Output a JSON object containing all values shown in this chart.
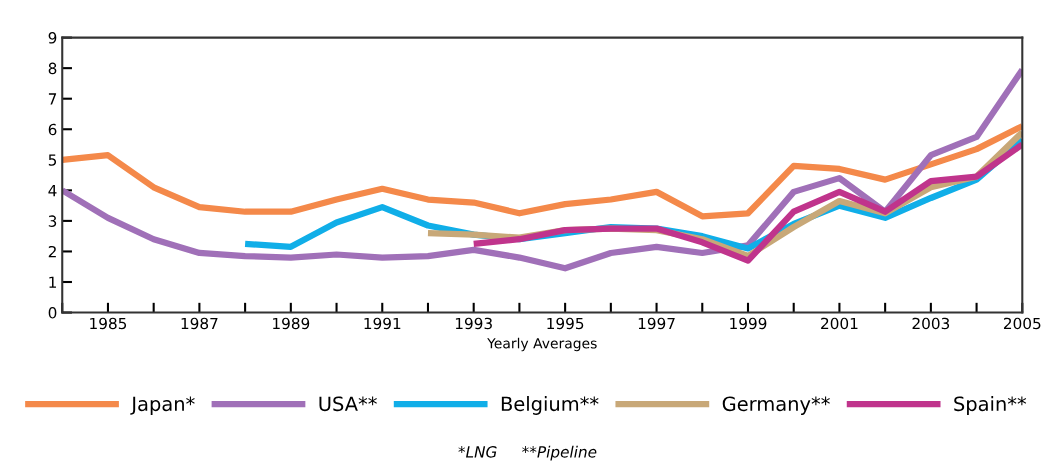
{
  "chart_data": {
    "type": "line",
    "xlabel": "Yearly Averages",
    "xlim": [
      1984,
      2005
    ],
    "ylim": [
      0,
      9
    ],
    "xticks": [
      {
        "value": 1984,
        "label": null
      },
      1985,
      {
        "value": 1986,
        "label": null
      },
      1987,
      {
        "value": 1988,
        "label": null
      },
      1989,
      {
        "value": 1990,
        "label": null
      },
      1991,
      {
        "value": 1992,
        "label": null
      },
      1993,
      {
        "value": 1994,
        "label": null
      },
      1995,
      {
        "value": 1996,
        "label": null
      },
      1997,
      {
        "value": 1998,
        "label": null
      },
      1999,
      {
        "value": 2000,
        "label": null
      },
      2001,
      {
        "value": 2002,
        "label": null
      },
      2003,
      {
        "value": 2004,
        "label": null
      },
      2005
    ],
    "yticks": [
      0,
      1,
      2,
      3,
      4,
      5,
      6,
      7,
      8,
      9
    ],
    "grid": false,
    "legend": "bottom",
    "line_style": "solid",
    "annotations": [
      "*LNG     **Pipeline"
    ],
    "series": [
      {
        "name": "Japan*",
        "color": "#f4894a",
        "x": [
          1984,
          1985,
          1986,
          1987,
          1988,
          1989,
          1990,
          1991,
          1992,
          1993,
          1994,
          1995,
          1996,
          1997,
          1998,
          1999,
          2000,
          2001,
          2002,
          2003,
          2004,
          2005
        ],
        "values": [
          5.0,
          5.15,
          4.1,
          3.45,
          3.3,
          3.3,
          3.7,
          4.05,
          3.7,
          3.6,
          3.25,
          3.55,
          3.7,
          3.95,
          3.15,
          3.25,
          4.8,
          4.7,
          4.35,
          4.85,
          5.35,
          6.1
        ]
      },
      {
        "name": "USA**",
        "color": "#a070b8",
        "x": [
          1984,
          1985,
          1986,
          1987,
          1988,
          1989,
          1990,
          1991,
          1992,
          1993,
          1994,
          1995,
          1996,
          1997,
          1998,
          1999,
          2000,
          2001,
          2002,
          2003,
          2004,
          2005
        ],
        "values": [
          4.0,
          3.1,
          2.4,
          1.95,
          1.85,
          1.8,
          1.9,
          1.8,
          1.85,
          2.05,
          1.8,
          1.45,
          1.95,
          2.15,
          1.95,
          2.2,
          3.95,
          4.4,
          3.3,
          5.15,
          5.75,
          7.95
        ]
      },
      {
        "name": "Belgium**",
        "color": "#10aee8",
        "x": [
          1988,
          1989,
          1990,
          1991,
          1992,
          1993,
          1994,
          1995,
          1996,
          1997,
          1998,
          1999,
          2000,
          2001,
          2002,
          2003,
          2004,
          2005
        ],
        "values": [
          2.25,
          2.15,
          2.95,
          3.45,
          2.85,
          2.55,
          2.4,
          2.6,
          2.8,
          2.75,
          2.5,
          2.1,
          2.9,
          3.5,
          3.1,
          3.75,
          4.35,
          5.65
        ]
      },
      {
        "name": "Germany**",
        "color": "#c8a878",
        "x": [
          1992,
          1993,
          1994,
          1995,
          1996,
          1997,
          1998,
          1999,
          2000,
          2001,
          2002,
          2003,
          2004,
          2005
        ],
        "values": [
          2.6,
          2.55,
          2.45,
          2.7,
          2.75,
          2.7,
          2.4,
          1.85,
          2.8,
          3.65,
          3.25,
          4.1,
          4.45,
          5.9
        ]
      },
      {
        "name": "Spain**",
        "color": "#c0348c",
        "x": [
          1993,
          1994,
          1995,
          1996,
          1997,
          1998,
          1999,
          2000,
          2001,
          2002,
          2003,
          2004,
          2005
        ],
        "values": [
          2.25,
          2.4,
          2.7,
          2.75,
          2.75,
          2.3,
          1.7,
          3.3,
          3.95,
          3.3,
          4.3,
          4.45,
          5.5
        ]
      }
    ]
  }
}
